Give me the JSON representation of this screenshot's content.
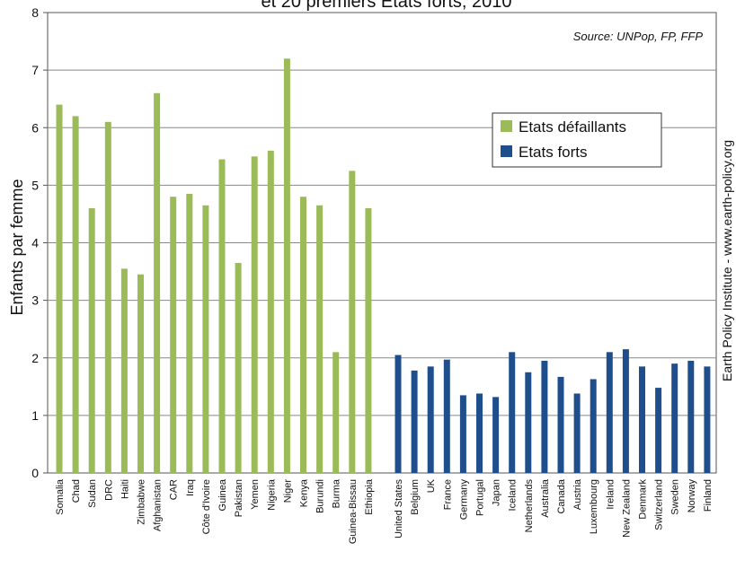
{
  "chart_data": {
    "type": "bar",
    "title": "et 20 premiers Etats forts, 2010",
    "ylabel": "Enfants par femme",
    "source": "Source: UNPop, FP, FFP",
    "credit": "Earth Policy Institute - www.earth-policy.org",
    "ylim": [
      0,
      8
    ],
    "yticks": [
      0,
      1,
      2,
      3,
      4,
      5,
      6,
      7,
      8
    ],
    "grid": true,
    "legend_position": "top-right",
    "series": [
      {
        "name": "Etats défaillants",
        "color": "#9bbb59",
        "categories": [
          "Somalia",
          "Chad",
          "Sudan",
          "DRC",
          "Haiti",
          "Zimbabwe",
          "Afghanistan",
          "CAR",
          "Iraq",
          "Côte d'Ivoire",
          "Guinea",
          "Pakistan",
          "Yemen",
          "Nigeria",
          "Niger",
          "Kenya",
          "Burundi",
          "Burma",
          "Guinea-Bissau",
          "Ethiopia"
        ],
        "values": [
          6.4,
          6.2,
          4.6,
          6.1,
          3.55,
          3.45,
          6.6,
          4.8,
          4.85,
          4.65,
          5.45,
          3.65,
          5.5,
          5.6,
          7.2,
          4.8,
          4.65,
          2.1,
          5.25,
          4.6
        ]
      },
      {
        "name": "Etats forts",
        "color": "#1f4e8c",
        "categories": [
          "United States",
          "Belgium",
          "UK",
          "France",
          "Germany",
          "Portugal",
          "Japan",
          "Iceland",
          "Netherlands",
          "Australia",
          "Canada",
          "Austria",
          "Luxembourg",
          "Ireland",
          "New Zealand",
          "Denmark",
          "Switzerland",
          "Sweden",
          "Norway",
          "Finland"
        ],
        "values": [
          2.05,
          1.78,
          1.85,
          1.97,
          1.35,
          1.38,
          1.32,
          2.1,
          1.75,
          1.95,
          1.67,
          1.38,
          1.63,
          2.1,
          2.15,
          1.85,
          1.48,
          1.9,
          1.95,
          1.85
        ]
      }
    ]
  }
}
